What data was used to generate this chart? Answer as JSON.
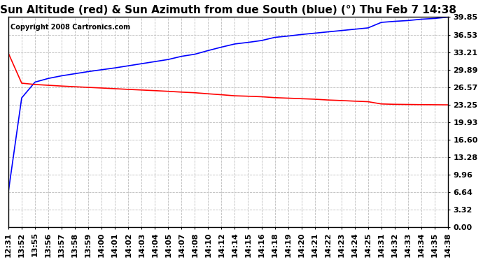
{
  "title": "Sun Altitude (red) & Sun Azimuth from due South (blue) (°) Thu Feb 7 14:38",
  "copyright": "Copyright 2008 Cartronics.com",
  "yticks": [
    0.0,
    3.32,
    6.64,
    9.96,
    13.28,
    16.6,
    19.93,
    23.25,
    26.57,
    29.89,
    33.21,
    36.53,
    39.85
  ],
  "xtick_labels": [
    "12:31",
    "13:52",
    "13:55",
    "13:56",
    "13:57",
    "13:58",
    "13:59",
    "14:00",
    "14:01",
    "14:02",
    "14:03",
    "14:04",
    "14:05",
    "14:07",
    "14:08",
    "14:10",
    "14:12",
    "14:14",
    "14:15",
    "14:16",
    "14:18",
    "14:19",
    "14:20",
    "14:21",
    "14:22",
    "14:23",
    "14:24",
    "14:25",
    "14:31",
    "14:32",
    "14:33",
    "14:34",
    "14:35",
    "14:38"
  ],
  "blue_color": "#0000ff",
  "red_color": "#ff0000",
  "background_color": "#ffffff",
  "grid_color": "#bbbbbb",
  "title_fontsize": 11,
  "copyright_fontsize": 7,
  "tick_fontsize": 8,
  "ymin": 0.0,
  "ymax": 39.85,
  "blue_data": [
    6.64,
    24.5,
    27.5,
    28.2,
    28.7,
    29.1,
    29.5,
    29.85,
    30.2,
    30.6,
    31.0,
    31.4,
    31.8,
    32.4,
    32.8,
    33.5,
    34.15,
    34.75,
    35.05,
    35.4,
    36.0,
    36.25,
    36.55,
    36.8,
    37.05,
    37.3,
    37.55,
    37.8,
    38.85,
    39.05,
    39.2,
    39.45,
    39.6,
    39.85
  ],
  "red_data": [
    33.0,
    27.3,
    27.05,
    26.9,
    26.75,
    26.62,
    26.5,
    26.38,
    26.25,
    26.12,
    26.0,
    25.88,
    25.75,
    25.6,
    25.48,
    25.28,
    25.1,
    24.9,
    24.82,
    24.72,
    24.55,
    24.45,
    24.35,
    24.25,
    24.1,
    24.0,
    23.88,
    23.78,
    23.35,
    23.28,
    23.25,
    23.22,
    23.2,
    23.18
  ]
}
